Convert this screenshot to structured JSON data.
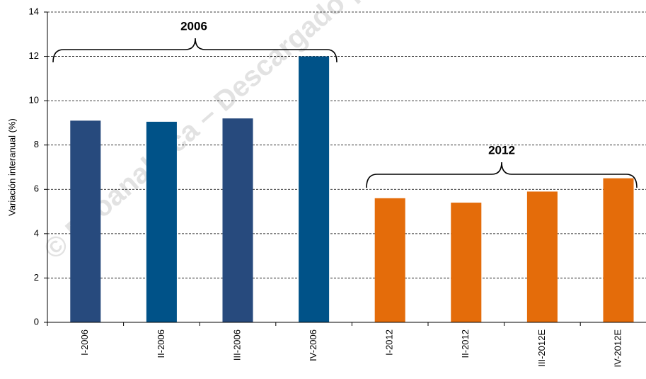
{
  "chart_data": {
    "type": "bar",
    "categories": [
      "I-2006",
      "II-2006",
      "III-2006",
      "IV-2006",
      "I-2012",
      "II-2012",
      "III-2012E",
      "IV-2012E"
    ],
    "values": [
      9.1,
      9.05,
      9.2,
      12.0,
      5.6,
      5.4,
      5.9,
      6.5
    ],
    "colors": [
      "#274a7d",
      "#005288",
      "#274a7d",
      "#005288",
      "#e46c0a",
      "#e46c0a",
      "#e46c0a",
      "#e46c0a"
    ],
    "ylabel": "Variación interanual  (%)",
    "ylim": [
      0,
      14
    ],
    "yticks": [
      0,
      2,
      4,
      6,
      8,
      10,
      12,
      14
    ],
    "grid": true,
    "annotations": [
      "2006",
      "2012"
    ],
    "watermark": "© Ecoanalítica – Descargado p"
  }
}
